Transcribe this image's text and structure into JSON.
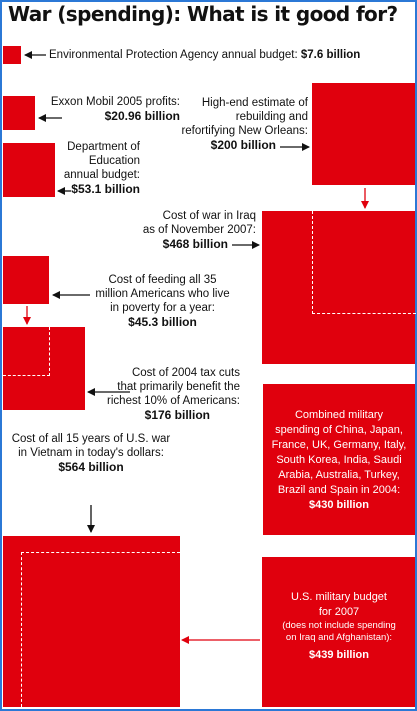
{
  "title": "War (spending): What is it good for?",
  "colors": {
    "square": "#e0000d",
    "border": "#2b78d6",
    "text": "#111111"
  },
  "chart_data": {
    "type": "proportional-area",
    "title": "War (spending): What is it good for?",
    "unit": "billion USD",
    "items": [
      {
        "label": "Environmental Protection Agency annual budget:",
        "value_text": "$7.6 billion",
        "value": 7.6
      },
      {
        "label": "Exxon Mobil 2005 profits:",
        "value_text": "$20.96 billion",
        "value": 20.96
      },
      {
        "label": "Department of Education annual budget:",
        "value_text": "$53.1 billion",
        "value": 53.1
      },
      {
        "label": "High-end estimate of rebuilding and refortifying New Orleans:",
        "value_text": "$200 billion",
        "value": 200
      },
      {
        "label": "Cost of war in Iraq as of November 2007:",
        "value_text": "$468 billion",
        "value": 468
      },
      {
        "label": "Cost of feeding all 35 million Americans who live in poverty for a year:",
        "value_text": "$45.3 billion",
        "value": 45.3
      },
      {
        "label": "Cost of 2004 tax cuts that primarily benefit the richest 10% of Americans:",
        "value_text": "$176 billion",
        "value": 176
      },
      {
        "label": "Combined military spending of China, Japan, France, UK, Germany, Italy, South Korea, India, Saudi Arabia, Australia, Turkey, Brazil and Spain in 2004:",
        "value_text": "$430 billion",
        "value": 430
      },
      {
        "label": "Cost of all 15 years of U.S. war in Vietnam in today's dollars:",
        "value_text": "$564 billion",
        "value": 564
      },
      {
        "label": "U.S. military budget for 2007",
        "sublabel": "(does not include spending on Iraq and Afghanistan):",
        "value_text": "$439 billion",
        "value": 439
      }
    ]
  },
  "labels": {
    "epa": {
      "text": "Environmental Protection Agency annual budget: ",
      "value": "$7.6 billion"
    },
    "exxon": {
      "l1": "Exxon Mobil 2005 profits:",
      "value": "$20.96 billion"
    },
    "education": {
      "l1": "Department of",
      "l2": "Education",
      "l3": "annual budget:",
      "value": "$53.1 billion"
    },
    "neworleans": {
      "l1": "High-end estimate of",
      "l2": "rebuilding and",
      "l3": "refortifying New Orleans:",
      "value": "$200 billion"
    },
    "iraq": {
      "l1": "Cost of war in Iraq",
      "l2": "as of November 2007:",
      "value": "$468 billion"
    },
    "poverty": {
      "l1": "Cost of feeding all 35",
      "l2": "million Americans who live",
      "l3": "in poverty for a year:",
      "value": "$45.3 billion"
    },
    "taxcuts": {
      "l1": "Cost of 2004 tax cuts",
      "l2": "that primarily benefit the",
      "l3": "richest 10% of Americans:",
      "value": "$176 billion"
    },
    "combined": {
      "l1": "Combined military",
      "l2": "spending of China, Japan,",
      "l3": "France, UK, Germany, Italy,",
      "l4": "South Korea, India, Saudi",
      "l5": "Arabia, Australia, Turkey,",
      "l6": "Brazil and Spain in 2004:",
      "value": "$430 billion"
    },
    "vietnam": {
      "l1": "Cost of all 15 years of U.S. war",
      "l2": "in Vietnam in today's dollars:",
      "value": "$564 billion"
    },
    "usmilitary": {
      "l1": "U.S. military budget",
      "l2": "for 2007",
      "l3": "(does not include spending",
      "l4": "on Iraq and Afghanistan):",
      "value": "$439 billion"
    }
  }
}
